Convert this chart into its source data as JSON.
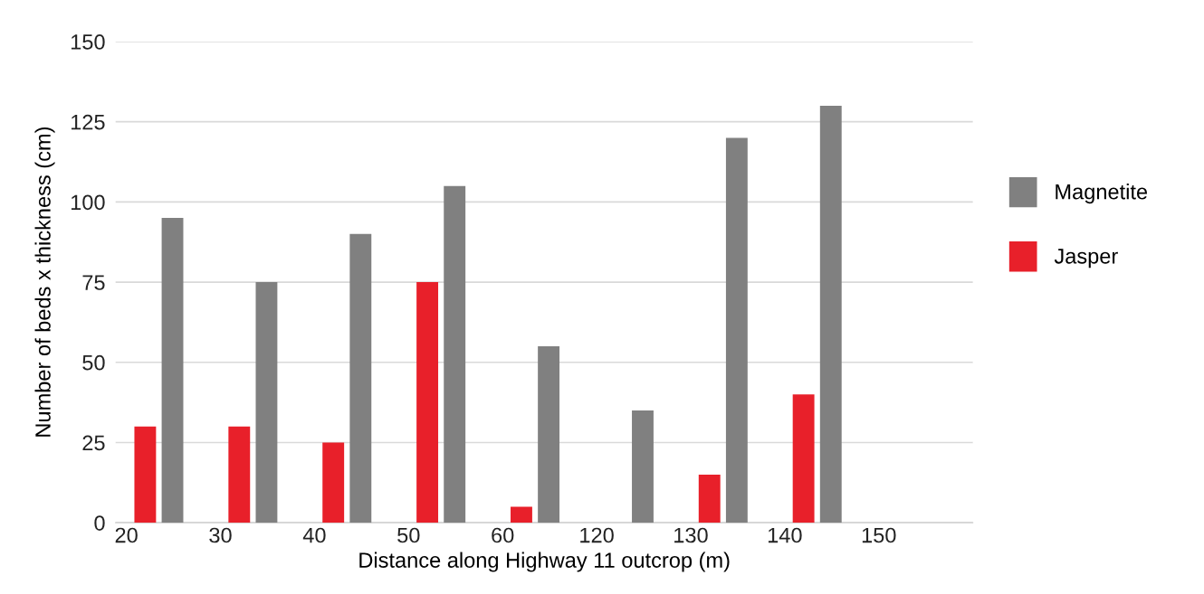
{
  "chart_data": {
    "type": "bar",
    "xlabel": "Distance along Highway 11 outcrop (m)",
    "ylabel": "Number of beds x thickness (cm)",
    "categories": [
      "20",
      "30",
      "40",
      "50",
      "60",
      "120",
      "130",
      "140",
      "150"
    ],
    "series": [
      {
        "name": "Magnetite",
        "color": "#808080",
        "values": [
          95,
          75,
          90,
          105,
          55,
          35,
          120,
          130,
          null
        ]
      },
      {
        "name": "Jasper",
        "color": "#e8202a",
        "values": [
          30,
          30,
          25,
          75,
          5,
          null,
          15,
          40,
          null
        ]
      }
    ],
    "ylim": [
      0,
      150
    ],
    "yticks": [
      0,
      25,
      50,
      75,
      100,
      125,
      150
    ],
    "grid": "y",
    "legend": "right"
  }
}
